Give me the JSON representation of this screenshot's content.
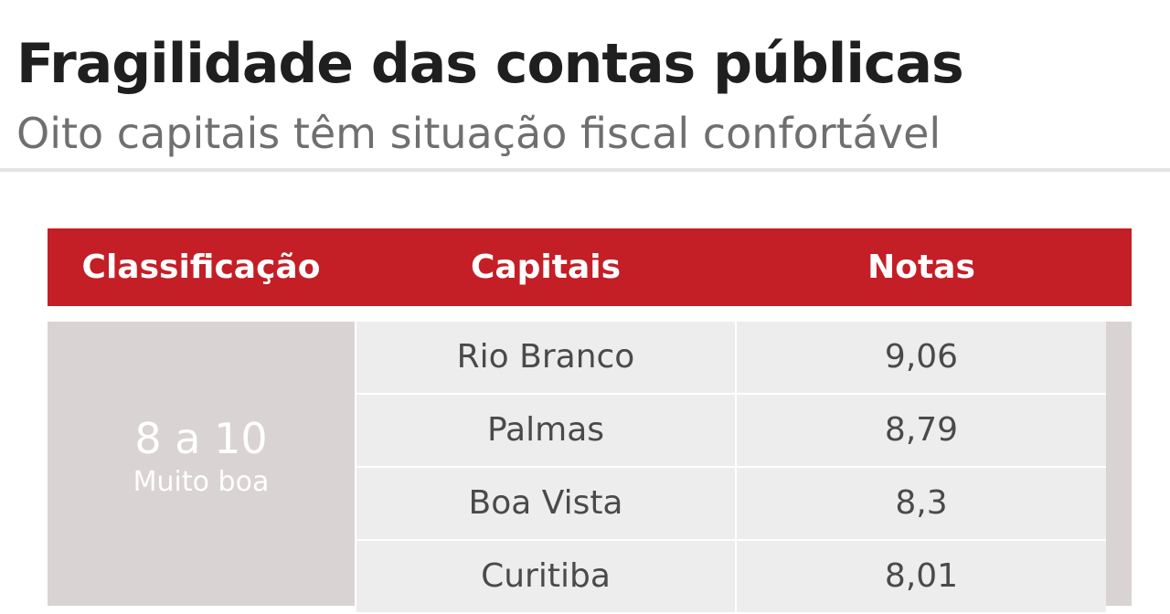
{
  "header": {
    "title": "Fragilidade das contas públicas",
    "subtitle": "Oito capitais têm situação fiscal confortável"
  },
  "colors": {
    "header_bg": "#c41e26",
    "class_bg": "#d9d3d3",
    "row_bg": "#ededed"
  },
  "chart_data": {
    "type": "table",
    "columns": [
      "Classificação",
      "Capitais",
      "Notas"
    ],
    "groups": [
      {
        "range": "8 a 10",
        "label": "Muito boa",
        "rows": [
          {
            "capital": "Rio Branco",
            "nota": "9,06"
          },
          {
            "capital": "Palmas",
            "nota": "8,79"
          },
          {
            "capital": "Boa Vista",
            "nota": "8,3"
          },
          {
            "capital": "Curitiba",
            "nota": "8,01"
          }
        ]
      }
    ]
  }
}
